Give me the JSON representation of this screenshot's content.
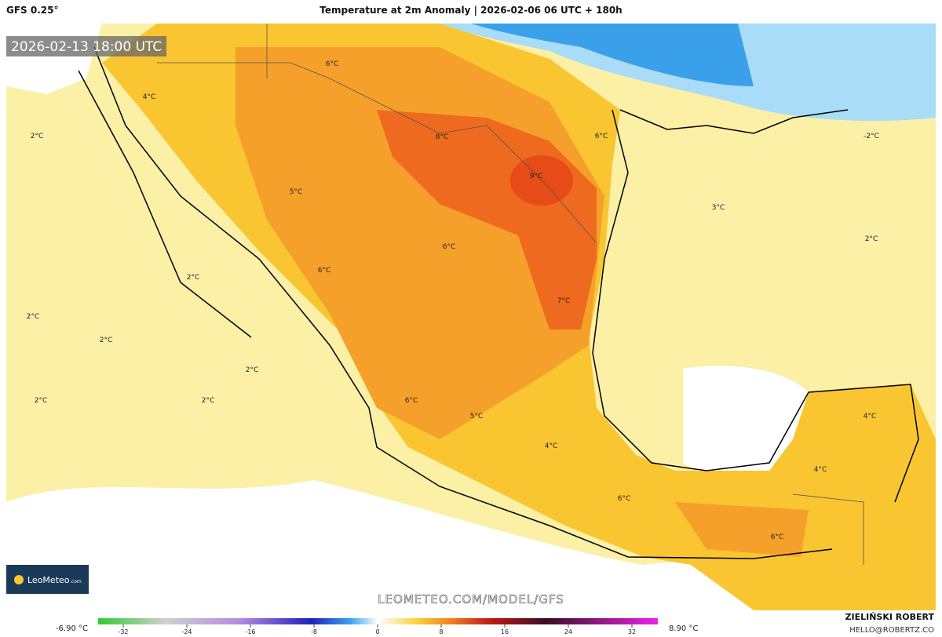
{
  "header": {
    "model": "GFS 0.25°",
    "title": "Temperature at 2m Anomaly | 2026-02-06 06 UTC + 180h"
  },
  "valid_time": "2026-02-13 18:00 UTC",
  "map_labels": [
    "2°C",
    "4°C",
    "6°C",
    "8°C",
    "6°C",
    "9°C",
    "5°C",
    "3°C",
    "2°C",
    "-2°C",
    "6°C",
    "6°C",
    "2°C",
    "2°C",
    "2°C",
    "7°C",
    "2°C",
    "2°C",
    "2°C",
    "6°C",
    "5°C",
    "4°C",
    "4°C",
    "4°C",
    "6°C",
    "6°C"
  ],
  "logo": {
    "name": "LeoMeteo",
    "suffix": ".com"
  },
  "watermark": "LEOMETEO.COM/MODEL/GFS",
  "author": {
    "name": "ZIELIŃSKI ROBERT",
    "contact": "HELLO@ROBERTZ.CO"
  },
  "colorbar": {
    "min_label": "-6.90 °C",
    "max_label": "8.90 °C",
    "ticks": [
      -32,
      -24,
      -16,
      -8,
      0,
      8,
      16,
      24,
      32
    ]
  }
}
